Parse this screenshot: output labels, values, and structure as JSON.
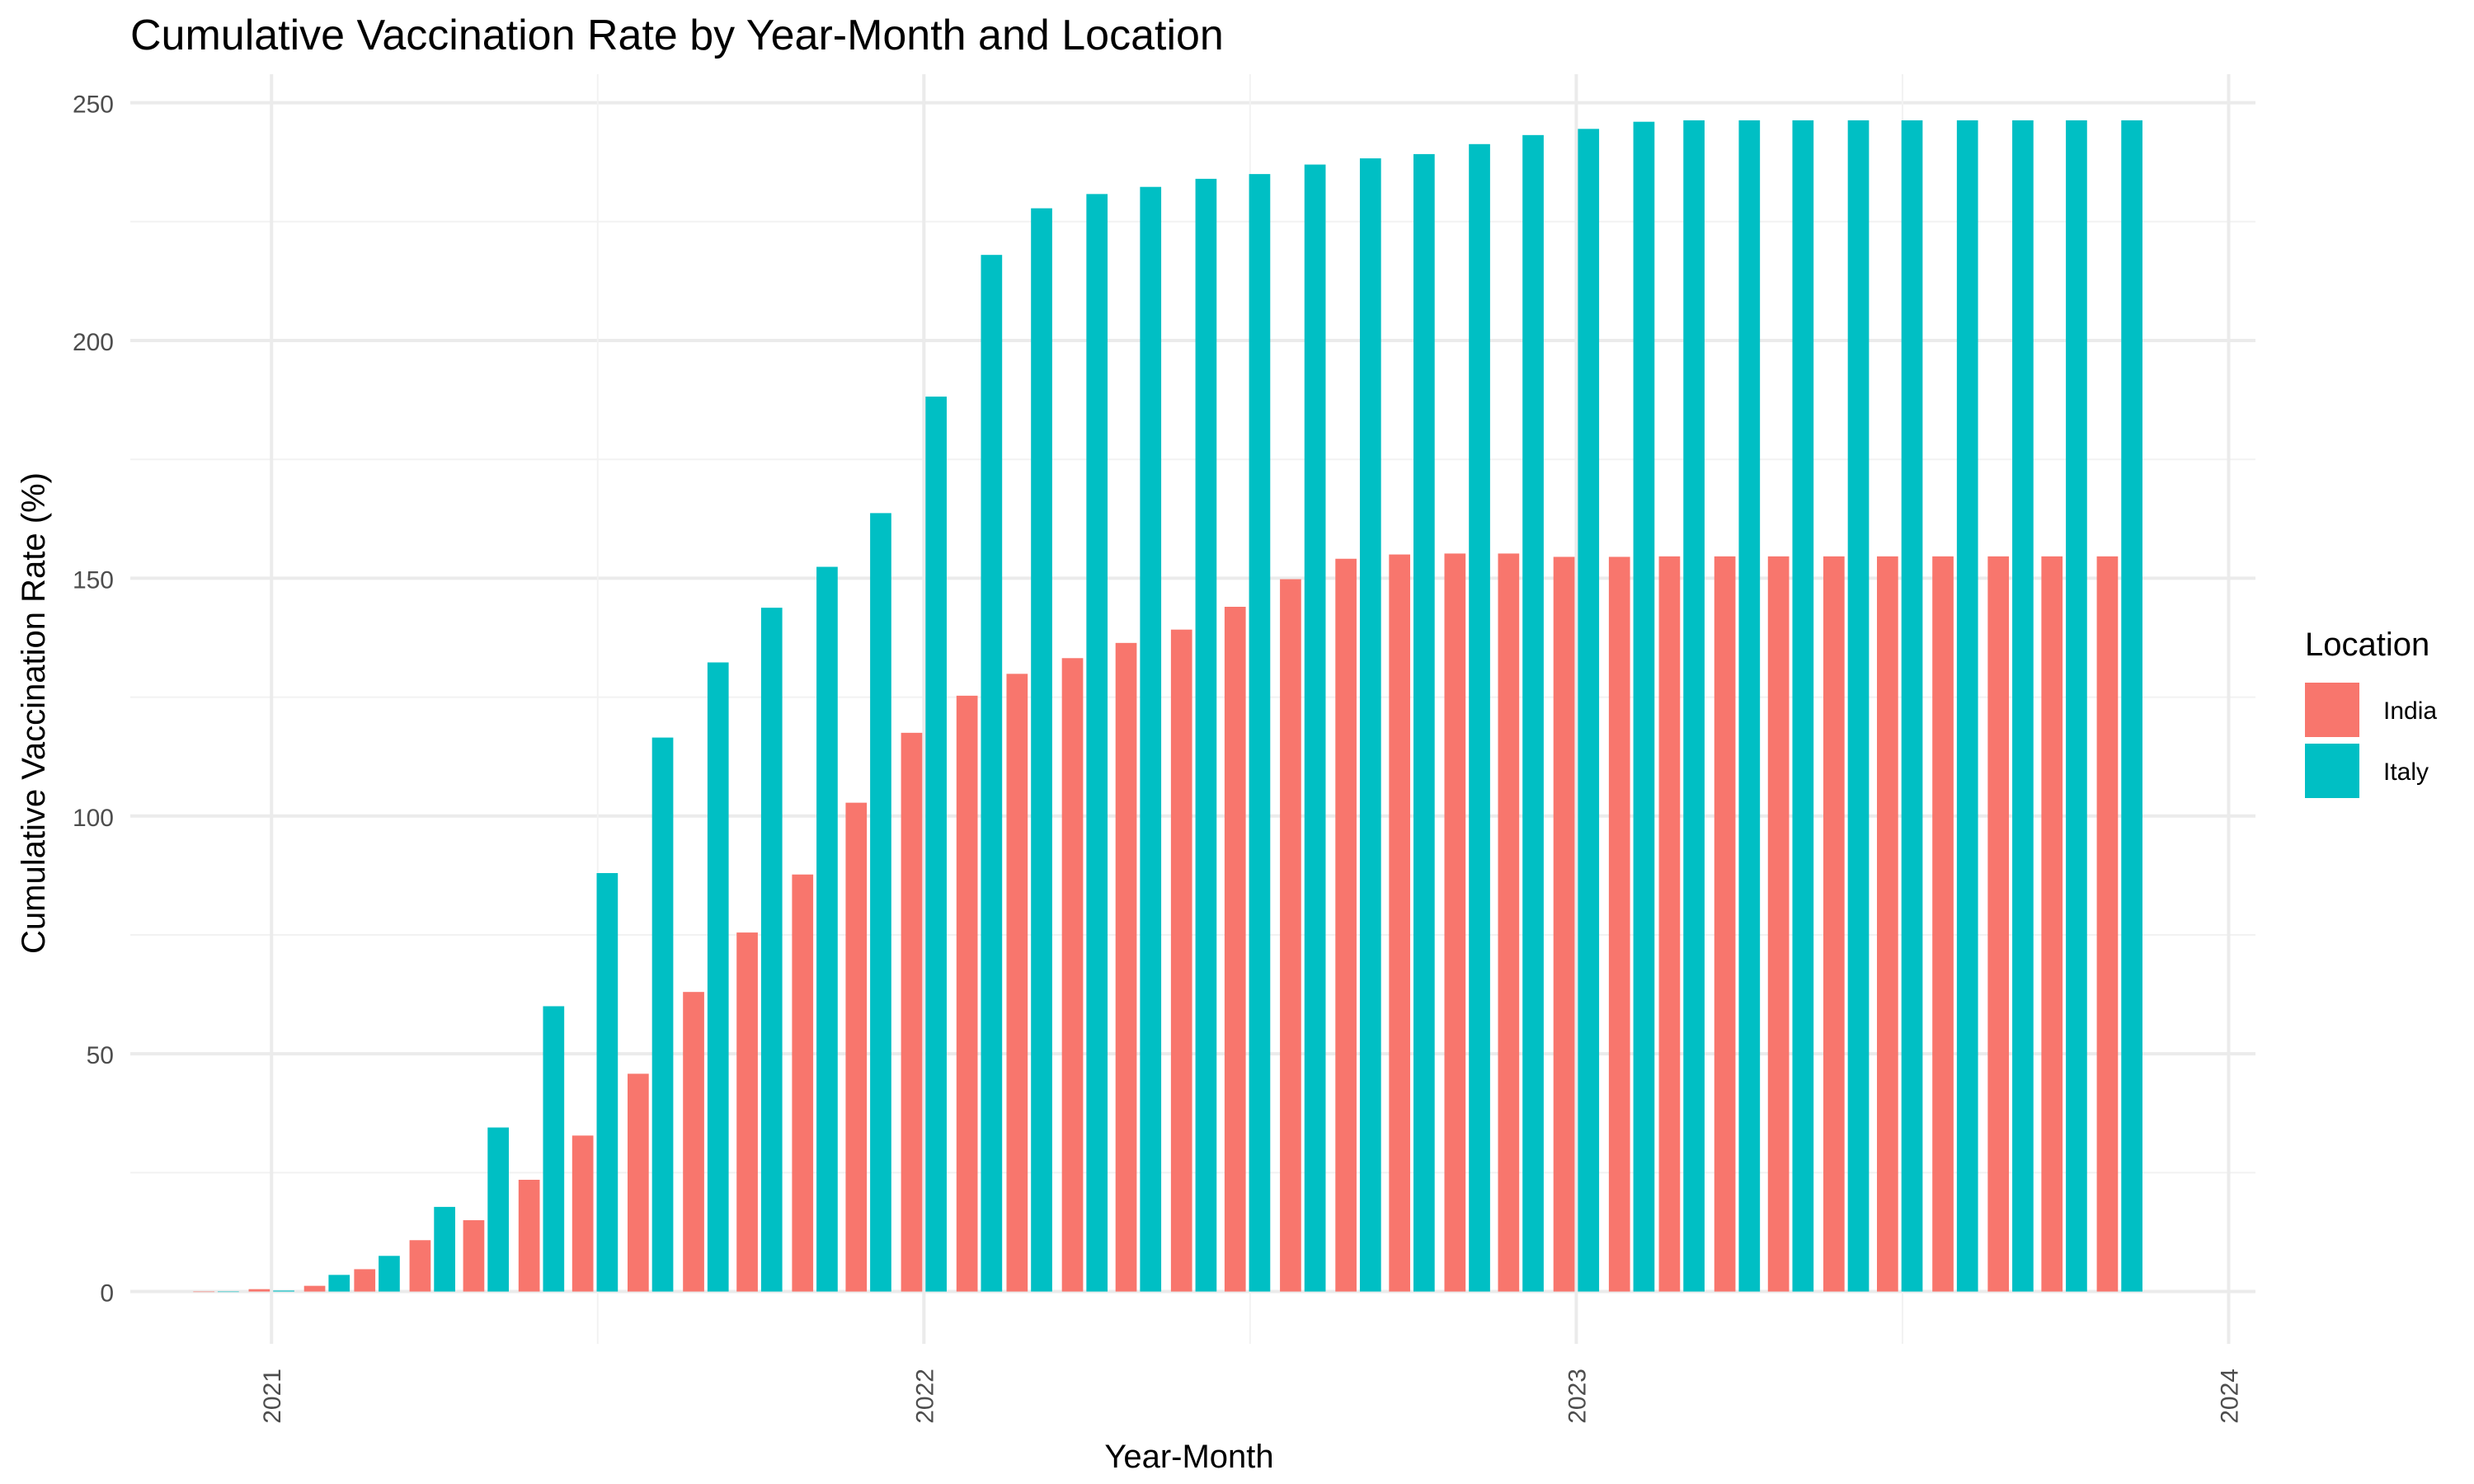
{
  "chart_data": {
    "type": "bar",
    "title": "Cumulative Vaccination Rate by Year-Month and Location",
    "xlabel": "Year-Month",
    "ylabel": "Cumulative Vaccination Rate (%)",
    "ylim": [
      -11,
      256
    ],
    "yticks": [
      0,
      50,
      100,
      150,
      200,
      250
    ],
    "xlim": [
      "2020-10-14",
      "2024-01-16"
    ],
    "xticks": [
      "2021",
      "2022",
      "2023",
      "2024"
    ],
    "grid": true,
    "legend": {
      "title": "Location",
      "position": "right"
    },
    "months": [
      "2020-12",
      "2021-01",
      "2021-02",
      "2021-03",
      "2021-04",
      "2021-05",
      "2021-06",
      "2021-07",
      "2021-08",
      "2021-09",
      "2021-10",
      "2021-11",
      "2021-12",
      "2022-01",
      "2022-02",
      "2022-03",
      "2022-04",
      "2022-05",
      "2022-06",
      "2022-07",
      "2022-08",
      "2022-09",
      "2022-10",
      "2022-11",
      "2022-12",
      "2023-01",
      "2023-02",
      "2023-03",
      "2023-04",
      "2023-05",
      "2023-06",
      "2023-07",
      "2023-08",
      "2023-09",
      "2023-10",
      "2023-11"
    ],
    "series": [
      {
        "name": "India",
        "color": "#F8766D",
        "values": [
          0,
          0.5,
          1.2,
          4.7,
          10.8,
          15,
          23.5,
          32.8,
          45.8,
          63,
          75.5,
          87.7,
          102.8,
          117.5,
          125.3,
          129.9,
          133.2,
          136.4,
          139.2,
          144,
          149.8,
          154.1,
          155,
          155.2,
          155.2,
          154.5,
          154.5,
          154.6,
          154.6,
          154.6,
          154.6,
          154.6,
          154.6,
          154.6,
          154.6,
          154.6
        ]
      },
      {
        "name": "Italy",
        "color": "#00BFC4",
        "values": [
          0,
          0.2,
          3.5,
          7.5,
          17.8,
          34.5,
          60,
          88,
          116.5,
          132.3,
          143.8,
          152.4,
          163.7,
          188.2,
          218,
          227.8,
          230.8,
          232.3,
          234,
          235,
          237,
          238.3,
          239.2,
          241.3,
          243.2,
          244.5,
          246,
          246.3,
          246.3,
          246.3,
          246.3,
          246.3,
          246.3,
          246.3,
          246.3,
          246.3
        ]
      }
    ]
  }
}
